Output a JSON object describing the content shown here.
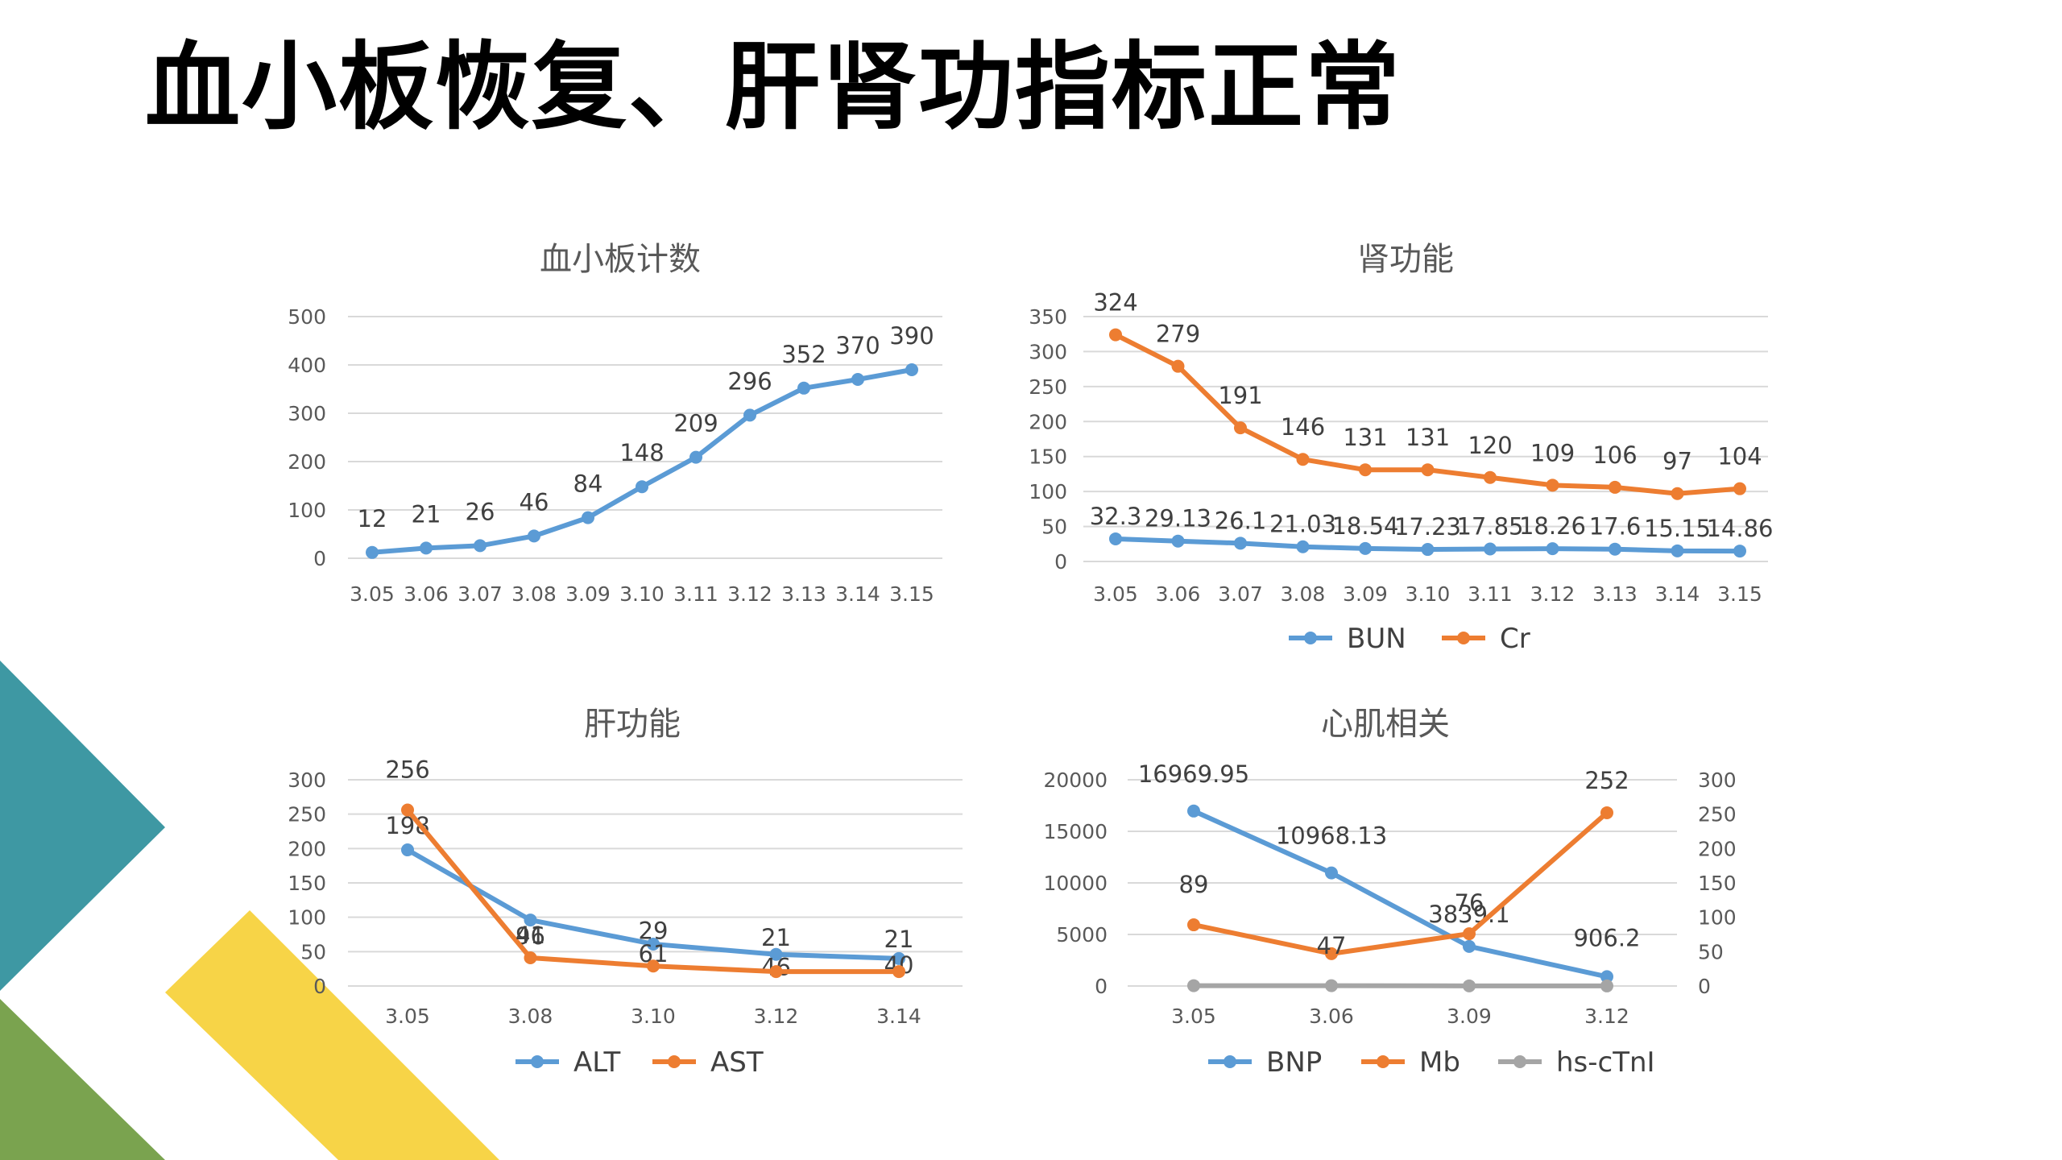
{
  "title": "血小板恢复、肝肾功指标正常",
  "colors": {
    "blue": "#5b9bd5",
    "orange": "#ed7d31",
    "gray": "#a5a5a5",
    "teal": "#3e98a3",
    "green": "#7aa34f",
    "yellow": "#f7d447"
  },
  "chart_data": [
    {
      "type": "line",
      "title": "血小板计数",
      "categories": [
        "3.05",
        "3.06",
        "3.07",
        "3.08",
        "3.09",
        "3.10",
        "3.11",
        "3.12",
        "3.13",
        "3.14",
        "3.15"
      ],
      "ylim": [
        0,
        500
      ],
      "yticks": [
        "0",
        "100",
        "200",
        "300",
        "400",
        "500"
      ],
      "grid": true,
      "legend": "none",
      "series": [
        {
          "values": [
            12,
            21,
            26,
            46,
            84,
            148,
            209,
            296,
            352,
            370,
            390
          ],
          "labels": [
            "12",
            "21",
            "26",
            "46",
            "84",
            "148",
            "209",
            "296",
            "352",
            "370",
            "390"
          ],
          "color": "#5b9bd5"
        }
      ]
    },
    {
      "type": "line",
      "title": "肾功能",
      "categories": [
        "3.05",
        "3.06",
        "3.07",
        "3.08",
        "3.09",
        "3.10",
        "3.11",
        "3.12",
        "3.13",
        "3.14",
        "3.15"
      ],
      "ylim": [
        0,
        350
      ],
      "yticks": [
        "0",
        "50",
        "100",
        "150",
        "200",
        "250",
        "300",
        "350"
      ],
      "grid": true,
      "legend": "bottom",
      "series": [
        {
          "name": "BUN",
          "values": [
            32.3,
            29.13,
            26.1,
            21.03,
            18.54,
            17.23,
            17.85,
            18.26,
            17.6,
            15.15,
            14.86
          ],
          "labels": [
            "32.3",
            "29.13",
            "26.1",
            "21.03",
            "18.54",
            "17.23",
            "17.85",
            "18.26",
            "17.6",
            "15.15",
            "14.86"
          ],
          "color": "#5b9bd5"
        },
        {
          "name": "Cr",
          "values": [
            324,
            279,
            191,
            146,
            131,
            131,
            120,
            109,
            106,
            97,
            104
          ],
          "labels": [
            "324",
            "279",
            "191",
            "146",
            "131",
            "131",
            "120",
            "109",
            "106",
            "97",
            "104"
          ],
          "color": "#ed7d31"
        }
      ]
    },
    {
      "type": "line",
      "title": "肝功能",
      "categories": [
        "3.05",
        "3.08",
        "3.10",
        "3.12",
        "3.14"
      ],
      "ylim": [
        0,
        300
      ],
      "yticks": [
        "0",
        "50",
        "100",
        "150",
        "200",
        "250",
        "300"
      ],
      "grid": true,
      "legend": "bottom",
      "series": [
        {
          "name": "ALT",
          "values": [
            198,
            96,
            61,
            46,
            40
          ],
          "labels": [
            "198",
            "96",
            "61",
            "46",
            "40"
          ],
          "color": "#5b9bd5"
        },
        {
          "name": "AST",
          "values": [
            256,
            41,
            29,
            21,
            21
          ],
          "labels": [
            "256",
            "41",
            "29",
            "21",
            "21"
          ],
          "color": "#ed7d31"
        }
      ]
    },
    {
      "type": "line",
      "title": "心肌相关",
      "categories": [
        "3.05",
        "3.06",
        "3.09",
        "3.12"
      ],
      "ylim": [
        0,
        20000
      ],
      "y2lim": [
        0,
        300
      ],
      "yticks": [
        "0",
        "5000",
        "10000",
        "15000",
        "20000"
      ],
      "y2ticks": [
        "0",
        "50",
        "100",
        "150",
        "200",
        "250",
        "300"
      ],
      "grid": true,
      "legend": "bottom",
      "series": [
        {
          "name": "BNP",
          "axis": "left",
          "values": [
            16969.95,
            10968.13,
            3839.1,
            906.2
          ],
          "labels": [
            "16969.95",
            "10968.13",
            "3839.1",
            "906.2"
          ],
          "color": "#5b9bd5"
        },
        {
          "name": "Mb",
          "axis": "right",
          "values": [
            89,
            47,
            76,
            252
          ],
          "labels": [
            "89",
            "47",
            "76",
            "252"
          ],
          "color": "#ed7d31"
        },
        {
          "name": "hs-cTnI",
          "axis": "right",
          "values": [
            0.5,
            0.5,
            0.2,
            0.1
          ],
          "labels": [],
          "color": "#a5a5a5"
        }
      ]
    }
  ]
}
